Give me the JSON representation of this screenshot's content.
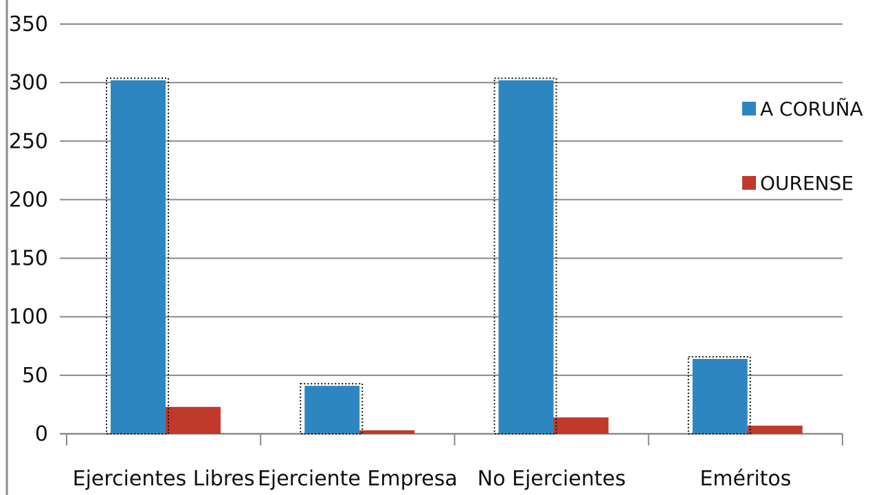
{
  "chart_data": {
    "type": "bar",
    "categories": [
      "Ejercientes Libres",
      "Ejerciente Empresa",
      "No Ejercientes",
      "Eméritos"
    ],
    "series": [
      {
        "name": "A CORUÑA",
        "values": [
          302,
          41,
          302,
          64
        ],
        "color": "#2e86c1"
      },
      {
        "name": "OURENSE",
        "values": [
          23,
          3,
          14,
          7
        ],
        "color": "#c0392b"
      }
    ],
    "yticks": [
      "0",
      "50",
      "100",
      "150",
      "200",
      "250",
      "300",
      "350"
    ],
    "ylim": [
      0,
      350
    ],
    "grid": true,
    "legend_position": "right",
    "axis_color": "#8a8a8a",
    "grid_color": "#8a8a8a"
  }
}
